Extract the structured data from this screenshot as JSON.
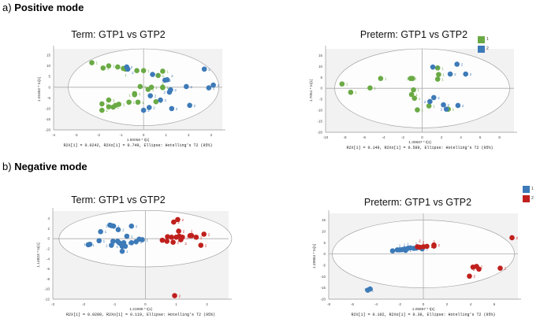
{
  "sections": [
    {
      "letter": "a)",
      "title": "Positive mode"
    },
    {
      "letter": "b)",
      "title": "Negative mode"
    }
  ],
  "legends": [
    {
      "items": [
        {
          "label": "1",
          "color": "#6aaa45"
        },
        {
          "label": "2",
          "color": "#3d7ab8"
        }
      ]
    },
    {
      "items": [
        {
          "label": "1",
          "color": "#3d7ab8"
        },
        {
          "label": "2",
          "color": "#c0201d"
        }
      ]
    }
  ],
  "chart_data": [
    {
      "type": "scatter",
      "title": "Term: GTP1 vs GTP2",
      "xlabel": "1.50058 * t[1]",
      "ylabel": "1.01652 * to[1]",
      "footer": "R2X[1] = 0.0242, R2Xo[1] = 0.749, Ellipse: Hotelling's T2 (95%)",
      "xlim": [
        -4,
        3.5
      ],
      "ylim": [
        -20,
        18
      ],
      "xticks": [
        -4,
        -3,
        -2,
        -1,
        0,
        1,
        2,
        3
      ],
      "yticks": [
        -20,
        -15,
        -10,
        -5,
        0,
        5,
        10,
        15
      ],
      "ellipse": {
        "rx": 3.35,
        "ry": 18
      },
      "series": [
        {
          "name": "1",
          "color": "#6aaa45",
          "points": [
            [
              -2.3,
              11.5
            ],
            [
              -1.8,
              9
            ],
            [
              -1.55,
              10
            ],
            [
              -1.15,
              9.5
            ],
            [
              -0.9,
              8.8
            ],
            [
              -0.8,
              8.5
            ],
            [
              -0.3,
              7.8
            ],
            [
              0,
              7.8
            ],
            [
              0.85,
              7.5
            ],
            [
              0.65,
              5.5
            ],
            [
              -0.15,
              0.3
            ],
            [
              0.2,
              -1
            ],
            [
              0.35,
              0
            ],
            [
              0.85,
              0
            ],
            [
              0.85,
              -0.2
            ],
            [
              -0.4,
              -3
            ],
            [
              -0.4,
              -3.5
            ],
            [
              -0.65,
              -7
            ],
            [
              -0.25,
              -7
            ],
            [
              0.55,
              -6.8
            ],
            [
              -1.55,
              -6
            ],
            [
              -1.85,
              -7.8
            ],
            [
              -1.55,
              -9.2
            ],
            [
              -1.35,
              -9.3
            ],
            [
              -1.25,
              -8.5
            ],
            [
              -1.1,
              -8
            ],
            [
              -1.85,
              -10.8
            ]
          ]
        },
        {
          "name": "2",
          "color": "#3d7ab8",
          "points": [
            [
              -0.75,
              9.5
            ],
            [
              -0.7,
              8.5
            ],
            [
              0.4,
              6
            ],
            [
              0.95,
              3.3
            ],
            [
              1.05,
              3.5
            ],
            [
              1.2,
              -1.2
            ],
            [
              1.15,
              -2.3
            ],
            [
              0.75,
              -6
            ],
            [
              0.3,
              -4
            ],
            [
              1.25,
              -10
            ],
            [
              0.25,
              -9.5
            ],
            [
              0,
              -10.8
            ],
            [
              2.05,
              -8.5
            ],
            [
              1.9,
              0.3
            ],
            [
              2.9,
              -0.3
            ],
            [
              3.1,
              1
            ],
            [
              2.7,
              8.5
            ]
          ]
        }
      ]
    },
    {
      "type": "scatter",
      "title": "Preterm: GTP1 vs GTP2",
      "xlabel": "1.30687 * t[1]",
      "ylabel": "1.7061 * to[1]",
      "footer": "R2X[1] = 0.149, R2Xo[1] = 0.589, Ellipse: Hotelling's T2 (95%)",
      "xlim": [
        -10,
        9.5
      ],
      "ylim": [
        -20,
        18
      ],
      "xticks": [
        -10,
        -8,
        -6,
        -4,
        -2,
        0,
        2,
        4,
        6,
        8
      ],
      "yticks": [
        -20,
        -15,
        -10,
        -5,
        0,
        5,
        10,
        15
      ],
      "ellipse": {
        "rx": 9.05,
        "ry": 18
      },
      "series": [
        {
          "name": "1",
          "color": "#6aaa45",
          "points": [
            [
              -8.3,
              2
            ],
            [
              -7.4,
              -1.8
            ],
            [
              -5.4,
              0.2
            ],
            [
              -4.3,
              4.5
            ],
            [
              -1.2,
              4.5
            ],
            [
              -1,
              4.5
            ],
            [
              -0.9,
              -0.7
            ],
            [
              -1.1,
              -2.8
            ],
            [
              -0.8,
              -4.5
            ],
            [
              -0.5,
              -9.8
            ],
            [
              0.7,
              -8
            ],
            [
              1.6,
              9.3
            ],
            [
              1.7,
              6.3
            ],
            [
              1.6,
              4.2
            ],
            [
              2.7,
              -9.5
            ]
          ]
        },
        {
          "name": "2",
          "color": "#3d7ab8",
          "points": [
            [
              1.1,
              9.7
            ],
            [
              3.6,
              11
            ],
            [
              2.9,
              6.5
            ],
            [
              4.5,
              6.5
            ],
            [
              1.2,
              -4.2
            ],
            [
              0.8,
              -6
            ],
            [
              2.2,
              -7.5
            ],
            [
              3.7,
              -7.8
            ],
            [
              2.5,
              -9.5
            ]
          ]
        }
      ]
    },
    {
      "type": "scatter",
      "title": "Term: GTP1 vs GTP2",
      "xlabel": "1.21998 * t[1]",
      "ylabel": "1.14823 * to[1]",
      "footer": "R2X[1] = 0.0289, R2Xo[1] = 0.119, Ellipse: Hotelling's T2 (95%)",
      "xlim": [
        -3,
        2.7
      ],
      "ylim": [
        -12,
        5.5
      ],
      "xticks": [
        -3,
        -2,
        -1,
        0,
        1,
        2
      ],
      "yticks": [
        -12,
        -10,
        -8,
        -6,
        -4,
        -2,
        0,
        2,
        4
      ],
      "ellipse": {
        "rx": 2.8,
        "ry": 5.6
      },
      "series": [
        {
          "name": "1",
          "color": "#3d7ab8",
          "points": [
            [
              -1.85,
              -1.2
            ],
            [
              -1.8,
              -1.1
            ],
            [
              -1.5,
              -0.4
            ],
            [
              -1.45,
              1.4
            ],
            [
              -1.15,
              2.7
            ],
            [
              -1.1,
              2.6
            ],
            [
              -1.03,
              2.5
            ],
            [
              -0.88,
              1.8
            ],
            [
              -0.45,
              2.5
            ],
            [
              -1.05,
              -0.5
            ],
            [
              -1.1,
              -1.3
            ],
            [
              -0.9,
              -0.5
            ],
            [
              -0.85,
              -0.8
            ],
            [
              -0.8,
              -1
            ],
            [
              -0.75,
              -1.5
            ],
            [
              -0.7,
              -0.8
            ],
            [
              -0.65,
              -1.5
            ],
            [
              -0.75,
              -2.5
            ],
            [
              -0.6,
              0.5
            ],
            [
              -0.45,
              -0.8
            ],
            [
              -0.3,
              -0.6
            ],
            [
              -0.2,
              -0.1
            ],
            [
              -0.1,
              -0.2
            ]
          ]
        },
        {
          "name": "2",
          "color": "#c0201d",
          "points": [
            [
              0.55,
              -0.3
            ],
            [
              0.7,
              -0.5
            ],
            [
              0.72,
              0.4
            ],
            [
              0.85,
              0.3
            ],
            [
              0.92,
              3.3
            ],
            [
              1.05,
              3.8
            ],
            [
              1.08,
              1.5
            ],
            [
              0.9,
              -0.7
            ],
            [
              1.0,
              0.3
            ],
            [
              1.1,
              0.5
            ],
            [
              1.15,
              -0.2
            ],
            [
              1.2,
              0.3
            ],
            [
              1.45,
              0.6
            ],
            [
              1.5,
              0.6
            ],
            [
              1.65,
              0.3
            ],
            [
              1.8,
              -1.3
            ],
            [
              1.9,
              0.9
            ],
            [
              0.95,
              -11.3
            ]
          ]
        }
      ]
    },
    {
      "type": "scatter",
      "title": "Preterm: GTP1 vs GTP2",
      "xlabel": "1.05867 * t[1]",
      "ylabel": "1.49864 * to[1]",
      "footer": "R2X[1] = 0.102, R2Xo[1] = 0.38, Ellipse: Hotelling's T2 (95%)",
      "xlim": [
        -8,
        8
      ],
      "ylim": [
        -20,
        18
      ],
      "xticks": [
        -8,
        -6,
        -4,
        -2,
        0,
        2,
        4,
        6
      ],
      "yticks": [
        -20,
        -15,
        -10,
        -5,
        0,
        5,
        10,
        15
      ],
      "ellipse": {
        "rx": 7.7,
        "ry": 15
      },
      "series": [
        {
          "name": "1",
          "color": "#3d7ab8",
          "points": [
            [
              -2.6,
              1.4
            ],
            [
              -2.2,
              1.8
            ],
            [
              -2,
              1.8
            ],
            [
              -1.8,
              1.9
            ],
            [
              -1.6,
              2.2
            ],
            [
              -1.5,
              1.6
            ],
            [
              -1.3,
              2.5
            ],
            [
              -1.1,
              2.7
            ],
            [
              -0.8,
              2.5
            ],
            [
              -0.6,
              2.6
            ],
            [
              -0.1,
              2.3
            ],
            [
              -4.7,
              -16
            ],
            [
              -4.5,
              -15.5
            ]
          ]
        },
        {
          "name": "2",
          "color": "#c0201d",
          "points": [
            [
              -0.5,
              3.2
            ],
            [
              -0.3,
              3
            ],
            [
              0,
              3.2
            ],
            [
              0.3,
              3.4
            ],
            [
              0.9,
              4
            ],
            [
              0.9,
              3.5
            ],
            [
              3.9,
              -9.8
            ],
            [
              4.2,
              -5.8
            ],
            [
              4.5,
              -5.5
            ],
            [
              4.7,
              -6.7
            ],
            [
              6.5,
              -6.3
            ],
            [
              7.5,
              7.2
            ]
          ]
        }
      ]
    }
  ]
}
